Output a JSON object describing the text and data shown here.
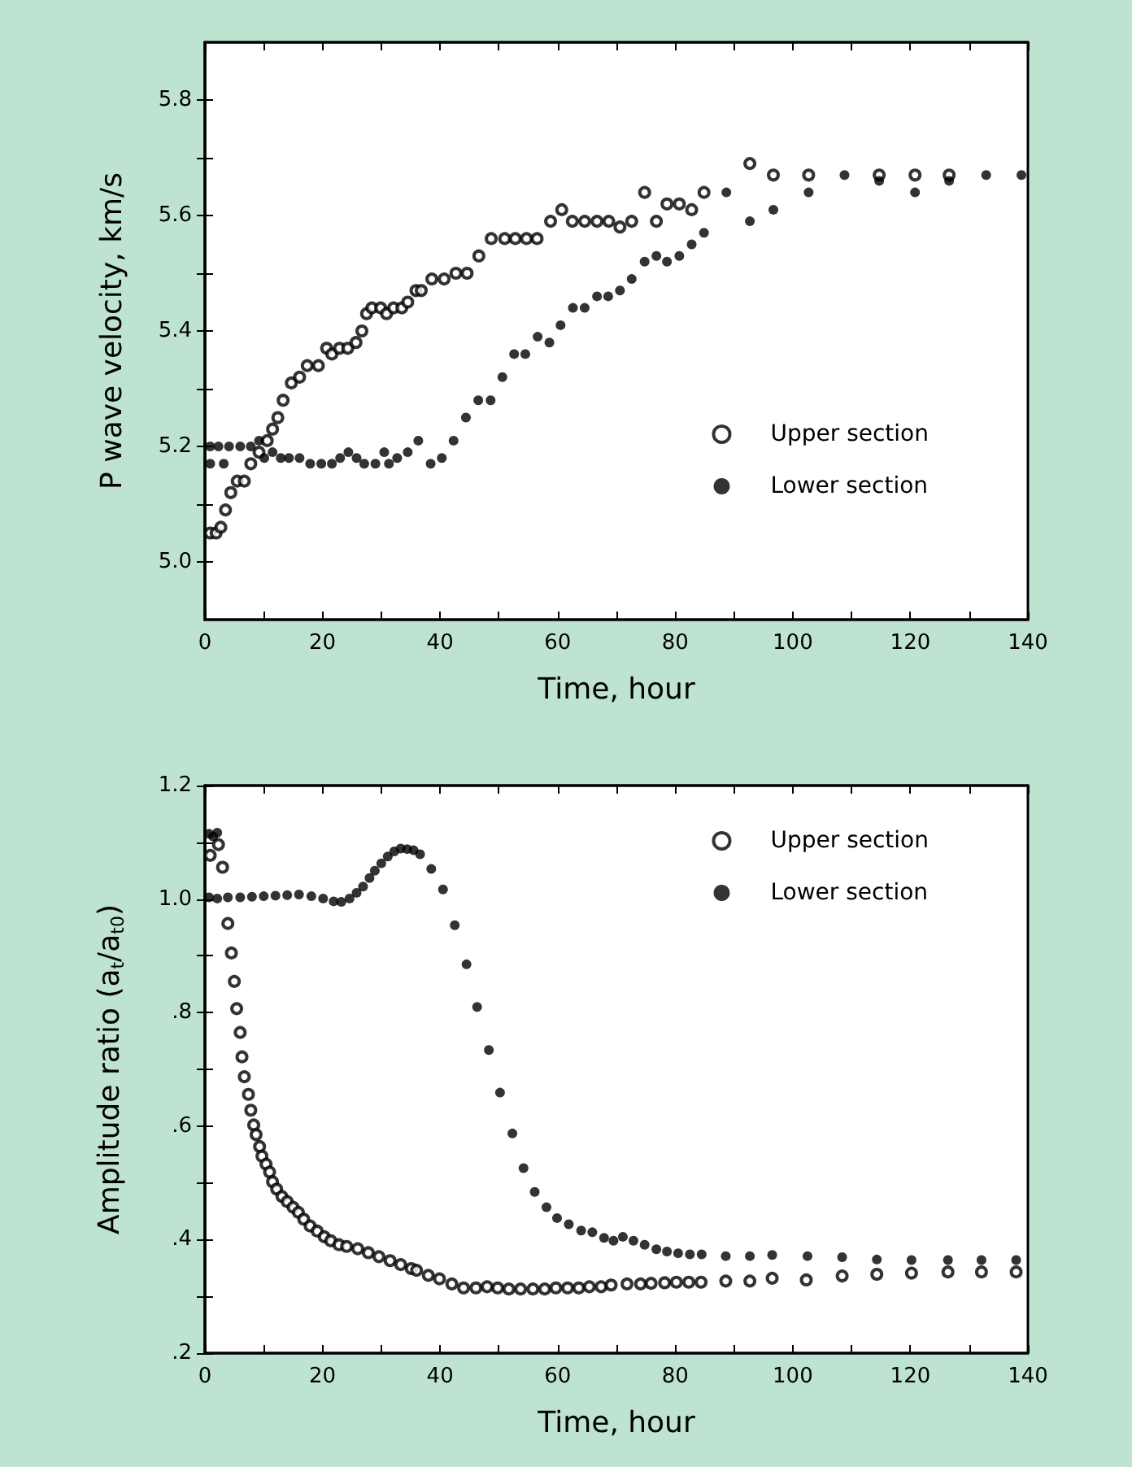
{
  "chart_data": [
    {
      "type": "scatter",
      "xlabel": "Time, hour",
      "ylabel": "P wave velocity, km/s",
      "xlim": [
        0,
        140
      ],
      "ylim": [
        4.9,
        5.9
      ],
      "xticks": [
        0,
        {
          "value": 10,
          "label": null
        },
        20,
        {
          "value": 30,
          "label": null
        },
        40,
        {
          "value": 50,
          "label": null
        },
        60,
        {
          "value": 70,
          "label": null
        },
        80,
        {
          "value": 90,
          "label": null
        },
        100,
        {
          "value": 110,
          "label": null
        },
        120,
        {
          "value": 130,
          "label": null
        },
        140
      ],
      "yticks": [
        {
          "value": 5,
          "label": "5.0"
        },
        {
          "value": 5.1,
          "label": null
        },
        {
          "value": 5.2,
          "label": "5.2"
        },
        {
          "value": 5.3,
          "label": null
        },
        {
          "value": 5.4,
          "label": "5.4"
        },
        {
          "value": 5.5,
          "label": null
        },
        {
          "value": 5.6,
          "label": "5.6"
        },
        {
          "value": 5.7,
          "label": null
        },
        {
          "value": 5.8,
          "label": "5.8"
        }
      ],
      "grid": false,
      "legend": "bottom right",
      "marker": "circle",
      "series": [
        {
          "name": "Upper section",
          "color": "#000000",
          "x": [
            0.9,
            1.9,
            2.7,
            3.5,
            4.4,
            5.5,
            6.7,
            7.8,
            9.2,
            10.6,
            11.5,
            12.4,
            13.3,
            14.7,
            16.1,
            17.4,
            19.3,
            20.7,
            21.6,
            22.9,
            24.3,
            25.7,
            26.7,
            27.5,
            28.4,
            29.9,
            30.9,
            32.1,
            33.5,
            34.5,
            35.9,
            36.8,
            38.6,
            40.7,
            42.7,
            44.6,
            46.6,
            48.7,
            51,
            52.8,
            54.7,
            56.5,
            58.8,
            60.7,
            62.5,
            64.6,
            66.7,
            68.7,
            70.6,
            72.6,
            74.8,
            76.8,
            78.6,
            80.7,
            82.8,
            84.9,
            92.7,
            96.7,
            102.7,
            114.7,
            120.8,
            126.6
          ],
          "values": [
            5.05,
            5.05,
            5.06,
            5.09,
            5.12,
            5.14,
            5.14,
            5.17,
            5.19,
            5.21,
            5.23,
            5.25,
            5.28,
            5.31,
            5.32,
            5.34,
            5.34,
            5.37,
            5.36,
            5.37,
            5.37,
            5.38,
            5.4,
            5.43,
            5.44,
            5.44,
            5.43,
            5.44,
            5.44,
            5.45,
            5.47,
            5.47,
            5.49,
            5.49,
            5.5,
            5.5,
            5.53,
            5.56,
            5.56,
            5.56,
            5.56,
            5.56,
            5.59,
            5.61,
            5.59,
            5.59,
            5.59,
            5.59,
            5.58,
            5.59,
            5.64,
            5.59,
            5.62,
            5.62,
            5.61,
            5.64,
            5.69,
            5.67,
            5.67,
            5.67,
            5.67,
            5.67
          ]
        },
        {
          "name": "Lower section",
          "color": "#000000",
          "x": [
            0.9,
            0.9,
            2.3,
            3.2,
            4.1,
            6,
            7.8,
            9.2,
            10.1,
            11.5,
            12.9,
            14.3,
            16.1,
            17.9,
            19.8,
            21.6,
            23,
            24.4,
            25.8,
            27.1,
            29,
            30.5,
            31.3,
            32.7,
            34.5,
            36.3,
            38.4,
            40.3,
            42.3,
            44.4,
            46.5,
            48.6,
            50.6,
            52.6,
            54.5,
            56.6,
            58.6,
            60.5,
            62.6,
            64.6,
            66.7,
            68.6,
            70.6,
            72.6,
            74.8,
            76.8,
            78.6,
            80.7,
            82.8,
            84.9,
            88.7,
            92.7,
            96.7,
            102.7,
            108.8,
            114.7,
            120.8,
            126.6,
            132.9,
            138.9
          ],
          "values": [
            5.17,
            5.2,
            5.2,
            5.17,
            5.2,
            5.2,
            5.2,
            5.21,
            5.18,
            5.19,
            5.18,
            5.18,
            5.18,
            5.17,
            5.17,
            5.17,
            5.18,
            5.19,
            5.18,
            5.17,
            5.17,
            5.19,
            5.17,
            5.18,
            5.19,
            5.21,
            5.17,
            5.18,
            5.21,
            5.25,
            5.28,
            5.28,
            5.32,
            5.36,
            5.36,
            5.39,
            5.38,
            5.41,
            5.44,
            5.44,
            5.46,
            5.46,
            5.47,
            5.49,
            5.52,
            5.53,
            5.52,
            5.53,
            5.55,
            5.57,
            5.64,
            5.59,
            5.61,
            5.64,
            5.67,
            5.66,
            5.64,
            5.66,
            5.67,
            5.67
          ]
        }
      ]
    },
    {
      "type": "scatter",
      "xlabel": "Time, hour",
      "ylabel": "Amplitude ratio (a$_{t}$/a$_{t0}$)",
      "xlim": [
        0,
        140
      ],
      "ylim": [
        0.2,
        1.2
      ],
      "xticks": [
        0,
        {
          "value": 10,
          "label": null
        },
        20,
        {
          "value": 30,
          "label": null
        },
        40,
        {
          "value": 50,
          "label": null
        },
        60,
        {
          "value": 70,
          "label": null
        },
        80,
        {
          "value": 90,
          "label": null
        },
        100,
        {
          "value": 110,
          "label": null
        },
        120,
        {
          "value": 130,
          "label": null
        },
        140
      ],
      "yticks": [
        {
          "value": 0.2,
          "label": ".2"
        },
        {
          "value": 0.3,
          "label": null
        },
        {
          "value": 0.4,
          "label": ".4"
        },
        {
          "value": 0.5,
          "label": null
        },
        {
          "value": 0.6,
          "label": ".6"
        },
        {
          "value": 0.7,
          "label": null
        },
        {
          "value": 0.8,
          "label": ".8"
        },
        {
          "value": 0.9,
          "label": null
        },
        {
          "value": 1,
          "label": "1.0"
        },
        {
          "value": 1.1,
          "label": null
        },
        {
          "value": 1.2,
          "label": "1.2"
        }
      ],
      "grid": false,
      "legend": "top right",
      "marker": "circle",
      "series": [
        {
          "name": "Upper section",
          "color": "#000000",
          "x": [
            0.9,
            2.3,
            3,
            3.9,
            4.5,
            5,
            5.4,
            6,
            6.3,
            6.7,
            7.4,
            7.8,
            8.3,
            8.7,
            9.3,
            9.7,
            10.4,
            11,
            11.5,
            12.2,
            13.1,
            14,
            15,
            15.9,
            16.8,
            17.9,
            19.1,
            20.3,
            21.4,
            22.8,
            24.1,
            26,
            27.8,
            29.6,
            31.5,
            33.3,
            35.1,
            36,
            38,
            39.9,
            42,
            44,
            46.1,
            48,
            49.8,
            51.7,
            53.7,
            55.8,
            57.8,
            59.7,
            61.7,
            63.6,
            65.4,
            67.4,
            69.1,
            71.8,
            74.1,
            75.9,
            78.2,
            80.2,
            82.3,
            84.4,
            88.6,
            92.7,
            96.5,
            102.3,
            108.4,
            114.3,
            120.2,
            126.4,
            132.1,
            138
          ],
          "values": [
            1.077,
            1.096,
            1.056,
            0.957,
            0.905,
            0.855,
            0.807,
            0.765,
            0.722,
            0.687,
            0.656,
            0.628,
            0.602,
            0.585,
            0.564,
            0.547,
            0.533,
            0.519,
            0.502,
            0.489,
            0.476,
            0.467,
            0.457,
            0.448,
            0.436,
            0.424,
            0.415,
            0.405,
            0.398,
            0.391,
            0.388,
            0.384,
            0.377,
            0.37,
            0.363,
            0.356,
            0.349,
            0.346,
            0.337,
            0.331,
            0.322,
            0.315,
            0.315,
            0.317,
            0.315,
            0.313,
            0.313,
            0.313,
            0.313,
            0.315,
            0.315,
            0.315,
            0.317,
            0.317,
            0.32,
            0.322,
            0.322,
            0.323,
            0.324,
            0.325,
            0.325,
            0.325,
            0.327,
            0.327,
            0.332,
            0.329,
            0.336,
            0.339,
            0.341,
            0.343,
            0.343,
            0.343
          ]
        },
        {
          "name": "Lower section",
          "color": "#000000",
          "x": [
            0.7,
            1.4,
            2.1,
            0.7,
            2.1,
            3.9,
            6,
            8,
            10,
            12,
            14,
            16,
            18.1,
            20.1,
            21.9,
            23.2,
            24.6,
            25.8,
            26.9,
            28,
            28.9,
            30,
            31.1,
            32.2,
            33.3,
            34.4,
            35.5,
            36.6,
            38.5,
            40.5,
            42.5,
            44.5,
            46.3,
            48.3,
            50.2,
            52.3,
            54.2,
            56.1,
            58.1,
            59.9,
            61.9,
            64,
            65.9,
            67.9,
            69.5,
            71.1,
            72.9,
            74.8,
            76.8,
            78.6,
            80.5,
            82.5,
            84.5,
            88.6,
            92.7,
            96.5,
            102.5,
            108.4,
            114.3,
            120.2,
            126.4,
            132.1,
            138
          ],
          "values": [
            1.115,
            1.11,
            1.117,
            1.003,
            1.001,
            1.003,
            1.003,
            1.004,
            1.005,
            1.006,
            1.007,
            1.008,
            1.005,
            1.001,
            0.996,
            0.995,
            1.001,
            1.011,
            1.022,
            1.037,
            1.05,
            1.063,
            1.075,
            1.084,
            1.089,
            1.088,
            1.086,
            1.079,
            1.053,
            1.017,
            0.954,
            0.885,
            0.81,
            0.734,
            0.659,
            0.587,
            0.526,
            0.484,
            0.457,
            0.438,
            0.427,
            0.416,
            0.413,
            0.403,
            0.398,
            0.405,
            0.398,
            0.391,
            0.383,
            0.379,
            0.376,
            0.374,
            0.374,
            0.371,
            0.371,
            0.373,
            0.371,
            0.369,
            0.365,
            0.364,
            0.364,
            0.364,
            0.364
          ]
        }
      ]
    }
  ]
}
